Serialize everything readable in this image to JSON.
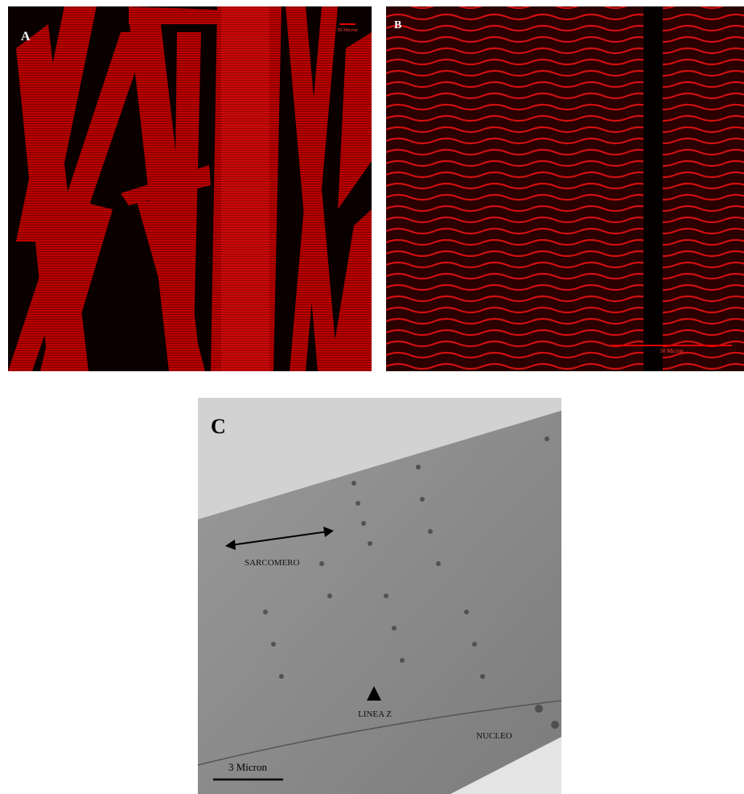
{
  "panels": [
    {
      "label": "A",
      "scale_bar": "50 Micron"
    },
    {
      "label": "B",
      "scale_bar": "50 Micron"
    },
    {
      "label": "C",
      "scale_bar": "3 Micron",
      "annotations": [
        "SARCOMERO",
        "LINEA Z",
        "NUCLEO"
      ]
    }
  ]
}
